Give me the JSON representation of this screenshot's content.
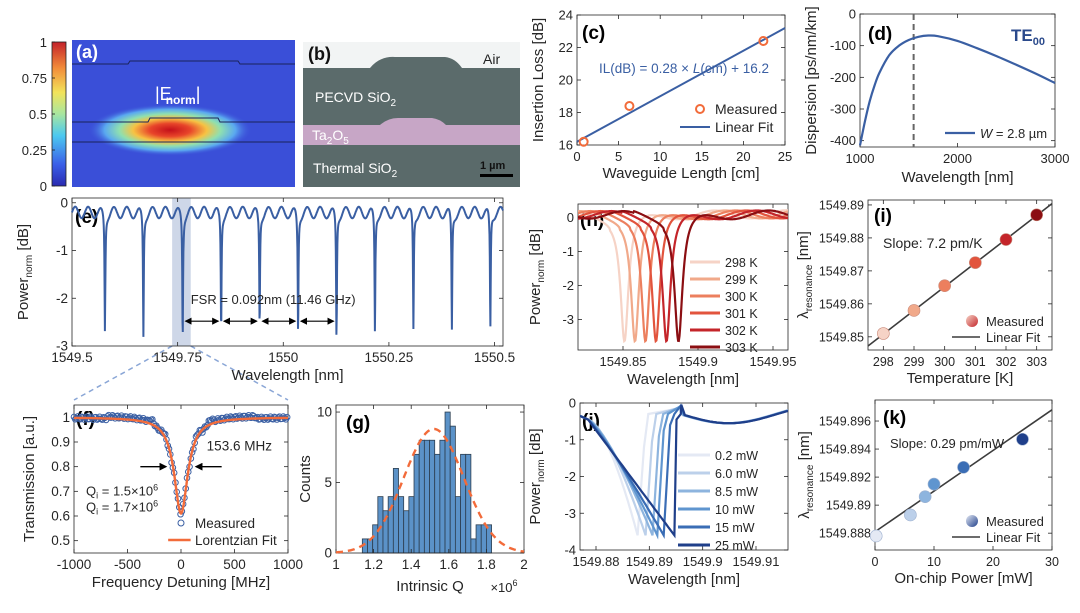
{
  "figure": {
    "panels": [
      "a",
      "b",
      "c",
      "d",
      "e",
      "f",
      "g",
      "h",
      "i",
      "j",
      "k"
    ]
  },
  "colors": {
    "blue": "#3a5fa3",
    "orange": "#f26b3a",
    "axis": "#262626",
    "hist_fill": "#5b92c8",
    "hist_edge": "#2c3e50",
    "shade": "#c9d3e6",
    "fit_dark": "#3c3c3c"
  },
  "chart_data": [
    {
      "id": "a",
      "type": "heatmap",
      "panel_label": "(a)",
      "title": "|E_norm|",
      "title_main": "|E",
      "title_sub": "norm",
      "title_end": "|",
      "colorbar_ticks": [
        "1",
        "0.75",
        "0.5",
        "0.25",
        "0"
      ],
      "colorbar_range": [
        0,
        1
      ],
      "colormap": "jet"
    },
    {
      "id": "b",
      "type": "image",
      "panel_label": "(b)",
      "layers": [
        {
          "label": "Air"
        },
        {
          "label": "PECVD SiO",
          "sub": "2"
        },
        {
          "label": "Ta",
          "sub": "2",
          "label2": "O",
          "sub2": "5"
        },
        {
          "label": "Thermal  SiO",
          "sub": "2"
        }
      ],
      "scalebar_label": "1 µm"
    },
    {
      "id": "c",
      "type": "scatter",
      "panel_label": "(c)",
      "xlabel": "Waveguide Length [cm]",
      "ylabel": "Insertion Loss [dB]",
      "xlim": [
        0,
        25
      ],
      "ylim": [
        16,
        24
      ],
      "xticks": [
        0,
        5,
        10,
        15,
        20,
        25
      ],
      "yticks": [
        16,
        18,
        20,
        22,
        24
      ],
      "series": [
        {
          "name": "Measured",
          "type": "scatter",
          "x": [
            0.8,
            6.3,
            22.4
          ],
          "y": [
            16.2,
            18.4,
            22.4
          ]
        },
        {
          "name": "Linear Fit",
          "type": "line",
          "slope": 0.28,
          "intercept": 16.2
        }
      ],
      "annotation": "IL(dB) = 0.28 × L(cm) + 16.2",
      "annotation_parts": [
        "IL(dB) = 0.28 × ",
        "L",
        "(cm) + 16.2"
      ],
      "legend": [
        "Measured",
        "Linear Fit"
      ],
      "legend_position": "bottom-right"
    },
    {
      "id": "d",
      "type": "line",
      "panel_label": "(d)",
      "xlabel": "Wavelength [nm]",
      "ylabel": "Dispersion [ps/nm/km]",
      "xlim": [
        1000,
        3000
      ],
      "ylim": [
        -420,
        0
      ],
      "xticks": [
        1000,
        2000,
        3000
      ],
      "yticks": [
        0,
        -100,
        -200,
        -300,
        -400
      ],
      "series": [
        {
          "name": "W = 2.8 µm",
          "x": [
            1000,
            1050,
            1100,
            1150,
            1200,
            1300,
            1400,
            1500,
            1600,
            1700,
            1800,
            2000,
            2200,
            2400,
            2600,
            2800,
            3000
          ],
          "y": [
            -415,
            -340,
            -275,
            -225,
            -185,
            -130,
            -100,
            -82,
            -72,
            -68,
            -70,
            -85,
            -108,
            -133,
            -160,
            -188,
            -218
          ]
        }
      ],
      "vline": 1550,
      "annotation": "TE00",
      "annotation_main": "TE",
      "annotation_sub": "00",
      "legend": [
        "W = 2.8 µm"
      ],
      "legend_parts": [
        "W",
        " = 2.8 µm"
      ],
      "legend_position": "bottom-right"
    },
    {
      "id": "e",
      "type": "line",
      "panel_label": "(e)",
      "xlabel": "Wavelength [nm]",
      "ylabel": "Power_norm [dB]",
      "ylabel_main": "Power",
      "ylabel_sub": "norm",
      "ylabel_end": " [dB]",
      "xlim": [
        1549.5,
        1550.52
      ],
      "ylim": [
        -3,
        0.1
      ],
      "xticks": [
        1549.5,
        1549.75,
        1550,
        1550.25,
        1550.5
      ],
      "xtick_labels": [
        "1549.5",
        "1549.75",
        "1550",
        "1550.25",
        "1550.5"
      ],
      "yticks": [
        0,
        -1,
        -2,
        -3
      ],
      "dips_x": [
        1549.578,
        1549.669,
        1549.762,
        1549.853,
        1549.944,
        1550.035,
        1550.126,
        1550.217,
        1550.308,
        1550.399,
        1550.49
      ],
      "dips_depth": [
        -2.65,
        -2.78,
        -2.8,
        -2.65,
        -2.55,
        -2.72,
        -2.8,
        -2.7,
        -2.65,
        -2.68,
        -2.65
      ],
      "highlight_range": [
        1549.737,
        1549.781
      ],
      "annotation": "FSR = 0.092nm (11.46 GHz)"
    },
    {
      "id": "f",
      "type": "scatter",
      "panel_label": "(f)",
      "xlabel": "Frequency Detuning [MHz]",
      "ylabel": "Transmission [a.u.]",
      "xlim": [
        -1000,
        1000
      ],
      "ylim": [
        0.45,
        1.05
      ],
      "xticks": [
        -1000,
        -500,
        0,
        500,
        1000
      ],
      "yticks": [
        0.5,
        0.6,
        0.7,
        0.8,
        0.9,
        1
      ],
      "series": [
        {
          "name": "Measured",
          "type": "scatter",
          "model": "lorentzian",
          "center": 0,
          "fwhm_mhz": 153.6,
          "depth": 0.39
        },
        {
          "name": "Lorentzian Fit",
          "type": "line",
          "model": "lorentzian",
          "center": 0,
          "fwhm_mhz": 153.6,
          "depth": 0.39
        }
      ],
      "annotation_width": "153.6 MHz",
      "q_lines": [
        {
          "q": "Q",
          "sub": "i",
          "text": " = 1.5×10",
          "exp": "6"
        },
        {
          "q": "Q",
          "sub": "i",
          "text": " = 1.7×10",
          "exp": "6"
        }
      ],
      "legend": [
        "Measured",
        "Lorentzian Fit"
      ],
      "legend_position": "bottom-right"
    },
    {
      "id": "g",
      "type": "bar",
      "panel_label": "(g)",
      "xlabel": "Intrinsic Q",
      "x_multiplier": "×10",
      "x_multiplier_exp": "6",
      "ylabel": "Counts",
      "xlim": [
        1,
        2
      ],
      "ylim": [
        0,
        10.5
      ],
      "xticks": [
        1,
        1.2,
        1.4,
        1.6,
        1.8,
        2
      ],
      "xtick_labels": [
        "1",
        "1.2",
        "1.4",
        "1.6",
        "1.8",
        "2"
      ],
      "yticks": [
        0,
        5,
        10
      ],
      "bin_start": 1.14,
      "bin_width": 0.0275,
      "counts": [
        1,
        1,
        2,
        4,
        3,
        4,
        6,
        4,
        3,
        4,
        7,
        8,
        8,
        8,
        7,
        8,
        10,
        9,
        4,
        7,
        7,
        1,
        2,
        2,
        2
      ],
      "fit": {
        "type": "gaussian",
        "mean": 1.52,
        "sigma": 0.16,
        "peak": 8.8
      }
    },
    {
      "id": "h",
      "type": "line",
      "panel_label": "(h)",
      "xlabel": "Wavelength [nm]",
      "ylabel": "Power_norm [dB]",
      "ylabel_main": "Power",
      "ylabel_sub": "norm",
      "ylabel_end": " [dB]",
      "xlim": [
        1549.82,
        1549.96
      ],
      "ylim": [
        -3.9,
        0.4
      ],
      "xticks": [
        1549.85,
        1549.9,
        1549.95
      ],
      "xtick_labels": [
        "1549.85",
        "1549.9",
        "1549.95"
      ],
      "yticks": [
        0,
        -1,
        -2,
        -3
      ],
      "series": [
        {
          "name": "298 K",
          "center": 1549.851,
          "color": "#f6d3c6"
        },
        {
          "name": "299 K",
          "center": 1549.858,
          "color": "#f1a98a"
        },
        {
          "name": "300 K",
          "center": 1549.865,
          "color": "#ec7f5e"
        },
        {
          "name": "301 K",
          "center": 1549.872,
          "color": "#e2543d"
        },
        {
          "name": "302 K",
          "center": 1549.879,
          "color": "#c4252a"
        },
        {
          "name": "303 K",
          "center": 1549.887,
          "color": "#8b0e12"
        }
      ],
      "legend_position": "right"
    },
    {
      "id": "i",
      "type": "scatter",
      "panel_label": "(i)",
      "xlabel": "Temperature [K]",
      "ylabel": "λ_resonance [nm]",
      "ylabel_main": "λ",
      "ylabel_sub": "resonance",
      "ylabel_end": " [nm]",
      "xlim": [
        297.5,
        303.5
      ],
      "ylim": [
        1549.846,
        1549.8915
      ],
      "xticks": [
        298,
        299,
        300,
        301,
        302,
        303
      ],
      "yticks": [
        1549.85,
        1549.86,
        1549.87,
        1549.88,
        1549.89
      ],
      "ytick_labels": [
        "1549.85",
        "1549.86",
        "1549.87",
        "1549.88",
        "1549.89"
      ],
      "series": [
        {
          "name": "Measured",
          "type": "scatter",
          "x": [
            298,
            299,
            300,
            301,
            302,
            303
          ],
          "y": [
            1549.851,
            1549.858,
            1549.8655,
            1549.8725,
            1549.8795,
            1549.887
          ],
          "colors": [
            "#f6d3c6",
            "#f1a98a",
            "#ec7f5e",
            "#e2543d",
            "#c4252a",
            "#8b0e12"
          ]
        },
        {
          "name": "Linear Fit",
          "type": "line",
          "slope": 0.0072,
          "x0": 298,
          "y0": 1549.8508
        }
      ],
      "annotation": "Slope: 7.2 pm/K",
      "legend": [
        "Measured",
        "Linear Fit"
      ],
      "legend_position": "bottom-right"
    },
    {
      "id": "j",
      "type": "line",
      "panel_label": "(j)",
      "xlabel": "Wavelength [nm]",
      "ylabel": "Power_norm [dB]",
      "ylabel_main": "Power",
      "ylabel_sub": "norm",
      "ylabel_end": " [dB]",
      "xlim": [
        1549.877,
        1549.916
      ],
      "ylim": [
        -4,
        0
      ],
      "xticks": [
        1549.88,
        1549.89,
        1549.9,
        1549.91
      ],
      "xtick_labels": [
        "1549.88",
        "1549.89",
        "1549.9",
        "1549.91"
      ],
      "yticks": [
        0,
        -1,
        -2,
        -3,
        -4
      ],
      "series": [
        {
          "name": "0.2 mW",
          "dip": 1549.8878,
          "color": "#e4e9f4"
        },
        {
          "name": "6.0 mW",
          "dip": 1549.8893,
          "color": "#bcd0ea"
        },
        {
          "name": "8.5 mW",
          "dip": 1549.8906,
          "color": "#8db4de"
        },
        {
          "name": "10 mW",
          "dip": 1549.8915,
          "color": "#5f95cf"
        },
        {
          "name": "15 mW",
          "dip": 1549.8927,
          "color": "#3a6db5"
        },
        {
          "name": "25 mW",
          "dip": 1549.8947,
          "color": "#1f3f8a"
        }
      ],
      "legend_position": "right"
    },
    {
      "id": "k",
      "type": "scatter",
      "panel_label": "(k)",
      "xlabel": "On-chip Power [mW]",
      "ylabel": "λ_resonance [nm]",
      "ylabel_main": "λ",
      "ylabel_sub": "resonance",
      "ylabel_end": " [nm]",
      "xlim": [
        0,
        30
      ],
      "ylim": [
        1549.8868,
        1549.8975
      ],
      "xticks": [
        0,
        10,
        20,
        30
      ],
      "yticks": [
        1549.888,
        1549.89,
        1549.892,
        1549.894,
        1549.896
      ],
      "ytick_labels": [
        "1549.888",
        "1549.89",
        "1549.892",
        "1549.894",
        "1549.896"
      ],
      "series": [
        {
          "name": "Measured",
          "type": "scatter",
          "x": [
            0.2,
            6.0,
            8.5,
            10,
            15,
            25
          ],
          "y": [
            1549.8878,
            1549.8893,
            1549.8906,
            1549.8915,
            1549.8927,
            1549.8947
          ],
          "colors": [
            "#e4e9f4",
            "#bcd0ea",
            "#8db4de",
            "#5f95cf",
            "#3a6db5",
            "#1f3f8a"
          ]
        },
        {
          "name": "Linear Fit",
          "type": "line",
          "slope": 0.00029,
          "x0": 0,
          "y0": 1549.8881
        }
      ],
      "annotation": "Slope: 0.29 pm/mW",
      "legend": [
        "Measured",
        "Linear Fit"
      ],
      "legend_position": "bottom-right"
    }
  ]
}
